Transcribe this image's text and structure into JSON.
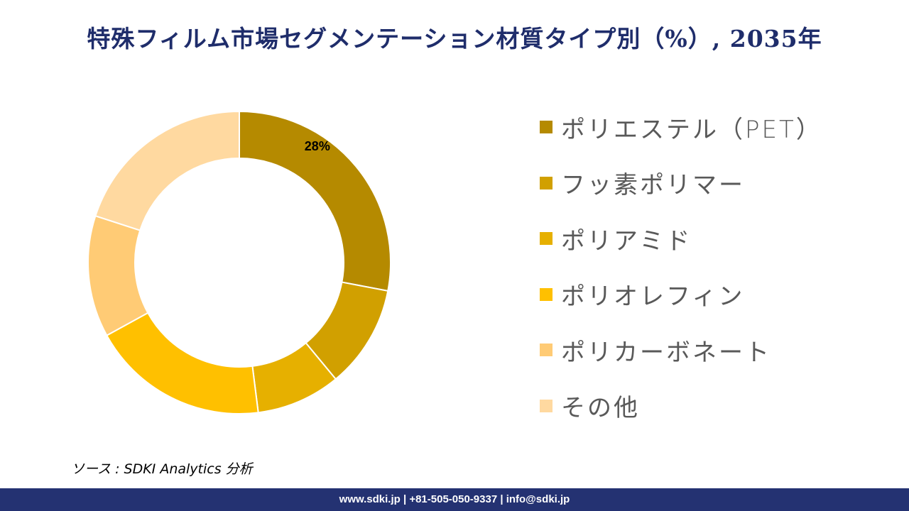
{
  "title": "特殊フィルム市場セグメンテーション材質タイプ別（%）, 2035年",
  "chart_data": {
    "type": "donut",
    "title": "特殊フィルム市場セグメンテーション材質タイプ別（%）, 2035年",
    "categories": [
      "ポリエステル（PET）",
      "フッ素ポリマー",
      "ポリアミド",
      "ポリオレフィン",
      "ポリカーボネート",
      "その他"
    ],
    "values": [
      28,
      11,
      9,
      19,
      13,
      20
    ],
    "colors": [
      "#B58A00",
      "#D1A000",
      "#E6B000",
      "#FFC000",
      "#FFCB75",
      "#FFD9A0"
    ],
    "data_labels": [
      "28%",
      "",
      "",
      "",
      "",
      ""
    ],
    "legend_position": "right"
  },
  "source": "ソース : SDKI Analytics 分析",
  "footer": "www.sdki.jp | +81-505-050-9337 | info@sdki.jp"
}
